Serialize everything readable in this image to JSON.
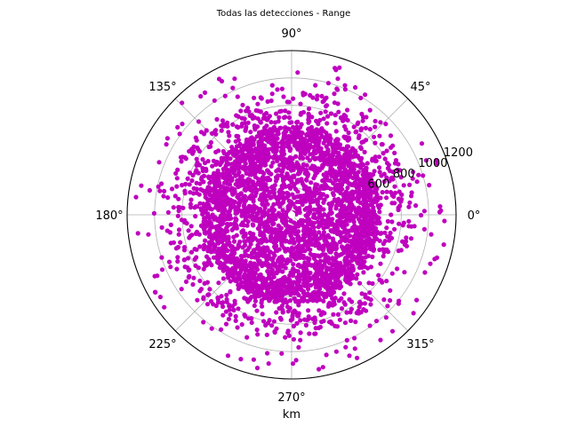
{
  "chart_data": {
    "type": "scatter",
    "projection": "polar",
    "title": "Todas las detecciones - Range",
    "xlabel": "km",
    "theta_direction": "counterclockwise",
    "theta_zero": "east",
    "theta_ticks": [
      {
        "deg": 0,
        "label": "0°"
      },
      {
        "deg": 45,
        "label": "45°"
      },
      {
        "deg": 90,
        "label": "90°"
      },
      {
        "deg": 135,
        "label": "135°"
      },
      {
        "deg": 180,
        "label": "180°"
      },
      {
        "deg": 225,
        "label": "225°"
      },
      {
        "deg": 270,
        "label": "270°"
      },
      {
        "deg": 315,
        "label": "315°"
      }
    ],
    "r_ticks": [
      {
        "value": 200,
        "label": ""
      },
      {
        "value": 400,
        "label": ""
      },
      {
        "value": 600,
        "label": "600"
      },
      {
        "value": 800,
        "label": "800"
      },
      {
        "value": 1000,
        "label": "1000"
      },
      {
        "value": 1200,
        "label": "1200"
      }
    ],
    "rlim": [
      0,
      1200
    ],
    "grid": true,
    "marker_color": "#bf00bf",
    "series": [
      {
        "distribution": [
          {
            "r_range": [
              0,
              500
            ],
            "density": "dense"
          },
          {
            "r_range": [
              500,
              650
            ],
            "density": "dense"
          },
          {
            "r_range": [
              650,
              900
            ],
            "density": "sparse"
          },
          {
            "r_range": [
              900,
              1150
            ],
            "density": "very sparse"
          }
        ]
      }
    ]
  }
}
